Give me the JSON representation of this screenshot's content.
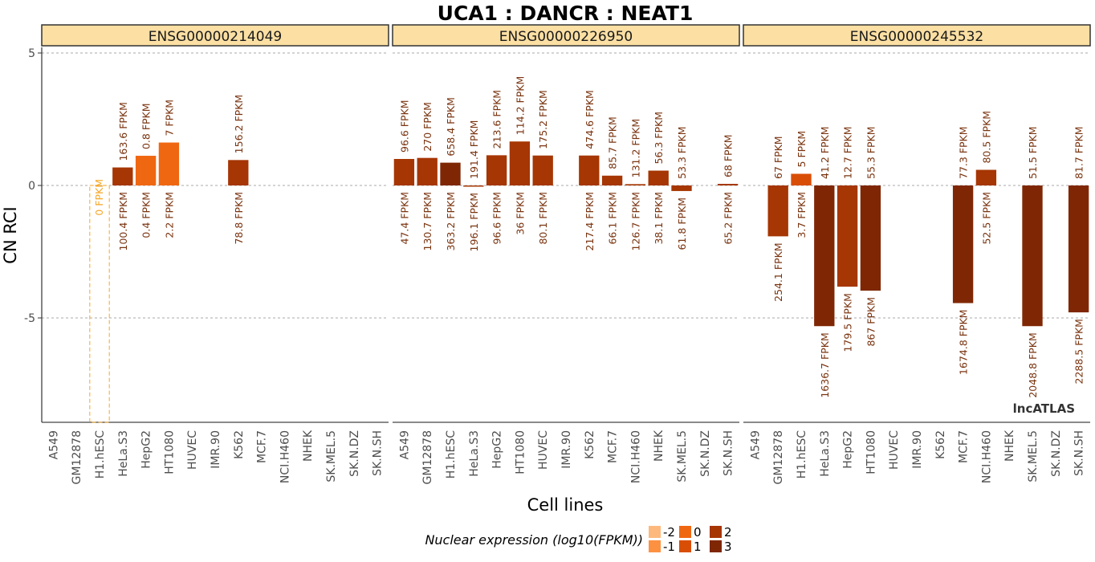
{
  "chart_data": {
    "type": "bar",
    "title": "UCA1 : DANCR : NEAT1",
    "xlabel": "Cell lines",
    "ylabel": "CN RCI",
    "ylim": [
      -9,
      6
    ],
    "yticks": [
      5,
      0,
      -5
    ],
    "grid": true,
    "watermark": "lncATLAS",
    "categories": [
      "A549",
      "GM12878",
      "H1.hESC",
      "HeLa.S3",
      "HepG2",
      "HT1080",
      "HUVEC",
      "IMR.90",
      "K562",
      "MCF.7",
      "NCI.H460",
      "NHEK",
      "SK.MEL.5",
      "SK.N.DZ",
      "SK.N.SH"
    ],
    "color_scale": {
      "title": "Nuclear expression (log10(FPKM))",
      "entries": [
        {
          "label": "-2",
          "value": -2,
          "color": "#fdb97d"
        },
        {
          "label": "-1",
          "value": -1,
          "color": "#fd9142"
        },
        {
          "label": "0",
          "value": 0,
          "color": "#f06711"
        },
        {
          "label": "1",
          "value": 1,
          "color": "#d94e06"
        },
        {
          "label": "2",
          "value": 2,
          "color": "#a63603"
        },
        {
          "label": "3",
          "value": 3,
          "color": "#7f2704"
        }
      ]
    },
    "panels": [
      {
        "name": "ENSG00000214049",
        "bars": [
          {
            "category": "H1.hESC",
            "value": -9,
            "cyto": "0 FPKM",
            "nuc": "",
            "missing": true
          },
          {
            "category": "HeLa.S3",
            "value": 0.68,
            "cyto": "163.6 FPKM",
            "nuc": "100.4 FPKM",
            "log_nuc": 2.0
          },
          {
            "category": "HepG2",
            "value": 1.12,
            "cyto": "0.8 FPKM",
            "nuc": "0.4 FPKM",
            "log_nuc": -0.4
          },
          {
            "category": "HT1080",
            "value": 1.62,
            "cyto": "7 FPKM",
            "nuc": "2.2 FPKM",
            "log_nuc": 0.34
          },
          {
            "category": "K562",
            "value": 0.96,
            "cyto": "156.2 FPKM",
            "nuc": "78.8 FPKM",
            "log_nuc": 1.9
          }
        ]
      },
      {
        "name": "ENSG00000226950",
        "bars": [
          {
            "category": "A549",
            "value": 1.0,
            "cyto": "96.6 FPKM",
            "nuc": "47.4 FPKM",
            "log_nuc": 1.68
          },
          {
            "category": "GM12878",
            "value": 1.04,
            "cyto": "270 FPKM",
            "nuc": "130.7 FPKM",
            "log_nuc": 2.12
          },
          {
            "category": "H1.hESC",
            "value": 0.86,
            "cyto": "658.4 FPKM",
            "nuc": "363.2 FPKM",
            "log_nuc": 2.56
          },
          {
            "category": "HeLa.S3",
            "value": -0.03,
            "cyto": "191.4 FPKM",
            "nuc": "196.1 FPKM",
            "log_nuc": 2.29
          },
          {
            "category": "HepG2",
            "value": 1.14,
            "cyto": "213.6 FPKM",
            "nuc": "96.6 FPKM",
            "log_nuc": 1.98
          },
          {
            "category": "HT1080",
            "value": 1.66,
            "cyto": "114.2 FPKM",
            "nuc": "36 FPKM",
            "log_nuc": 1.56
          },
          {
            "category": "HUVEC",
            "value": 1.13,
            "cyto": "175.2 FPKM",
            "nuc": "80.1 FPKM",
            "log_nuc": 1.9
          },
          {
            "category": "K562",
            "value": 1.13,
            "cyto": "474.6 FPKM",
            "nuc": "217.4 FPKM",
            "log_nuc": 2.34
          },
          {
            "category": "MCF.7",
            "value": 0.37,
            "cyto": "85.7 FPKM",
            "nuc": "66.1 FPKM",
            "log_nuc": 1.82
          },
          {
            "category": "NCI.H460",
            "value": 0.05,
            "cyto": "131.2 FPKM",
            "nuc": "126.7 FPKM",
            "log_nuc": 2.1
          },
          {
            "category": "NHEK",
            "value": 0.56,
            "cyto": "56.3 FPKM",
            "nuc": "38.1 FPKM",
            "log_nuc": 1.58
          },
          {
            "category": "SK.MEL.5",
            "value": -0.21,
            "cyto": "53.3 FPKM",
            "nuc": "61.8 FPKM",
            "log_nuc": 1.79
          },
          {
            "category": "SK.N.SH",
            "value": 0.06,
            "cyto": "68 FPKM",
            "nuc": "65.2 FPKM",
            "log_nuc": 1.81
          }
        ]
      },
      {
        "name": "ENSG00000245532",
        "bars": [
          {
            "category": "GM12878",
            "value": -1.92,
            "cyto": "67 FPKM",
            "nuc": "254.1 FPKM",
            "log_nuc": 2.41
          },
          {
            "category": "H1.hESC",
            "value": 0.44,
            "cyto": "5 FPKM",
            "nuc": "3.7 FPKM",
            "log_nuc": 0.57
          },
          {
            "category": "HeLa.S3",
            "value": -5.31,
            "cyto": "41.2 FPKM",
            "nuc": "1636.7 FPKM",
            "log_nuc": 3.21
          },
          {
            "category": "HepG2",
            "value": -3.82,
            "cyto": "12.7 FPKM",
            "nuc": "179.5 FPKM",
            "log_nuc": 2.25
          },
          {
            "category": "HT1080",
            "value": -3.97,
            "cyto": "55.3 FPKM",
            "nuc": "867 FPKM",
            "log_nuc": 2.94
          },
          {
            "category": "MCF.7",
            "value": -4.44,
            "cyto": "77.3 FPKM",
            "nuc": "1674.8 FPKM",
            "log_nuc": 3.22
          },
          {
            "category": "NCI.H460",
            "value": 0.59,
            "cyto": "80.5 FPKM",
            "nuc": "52.5 FPKM",
            "log_nuc": 1.72
          },
          {
            "category": "SK.MEL.5",
            "value": -5.31,
            "cyto": "51.5 FPKM",
            "nuc": "2048.8 FPKM",
            "log_nuc": 3.31
          },
          {
            "category": "SK.N.SH",
            "value": -4.79,
            "cyto": "81.7 FPKM",
            "nuc": "2288.5 FPKM",
            "log_nuc": 3.36
          }
        ]
      }
    ]
  }
}
